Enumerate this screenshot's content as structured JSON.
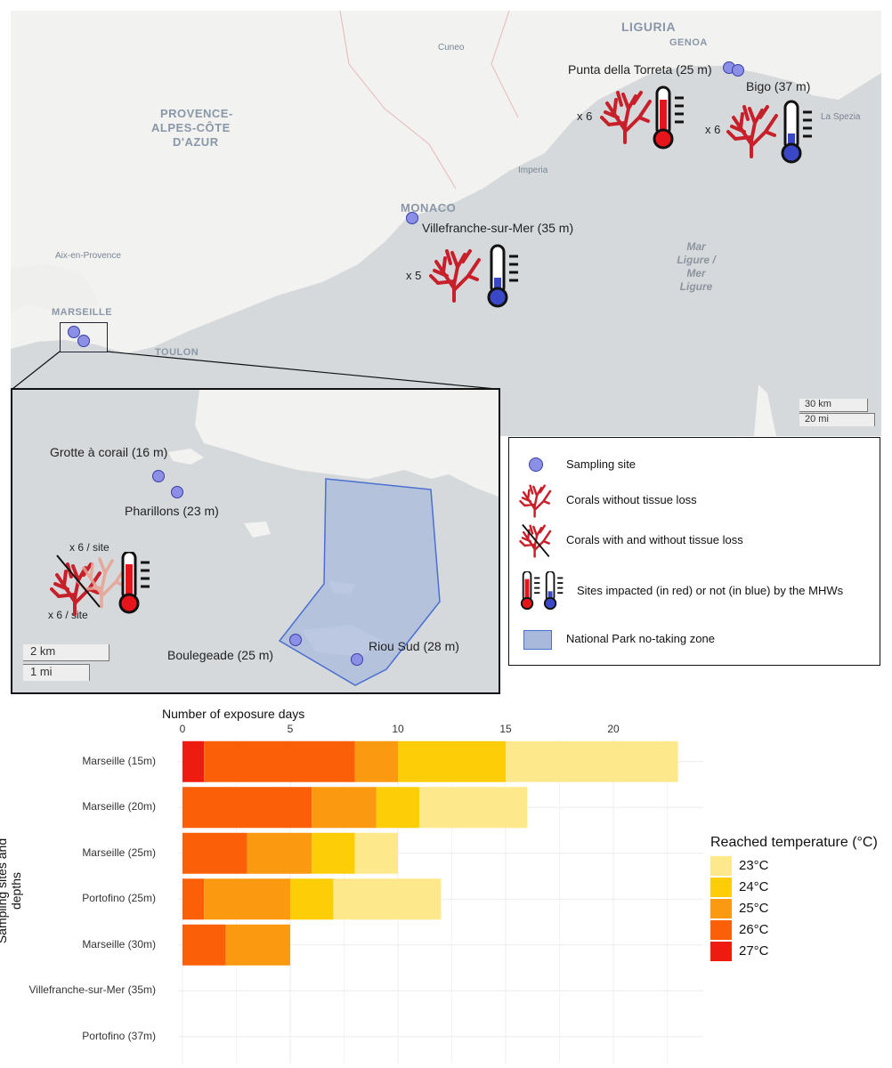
{
  "map": {
    "regions": {
      "liguria": "LIGURIA",
      "genoa": "GENOA",
      "cuneo": "Cuneo",
      "provence": [
        "PROVENCE-",
        "ALPES-CÔTE",
        "D'AZUR"
      ],
      "imperia": "Imperia",
      "monaco": "MONACO",
      "aix": "Aix-en-Provence",
      "marseille": "MARSEILLE",
      "toulon": "TOULON",
      "la_spezia": "La Spezia",
      "sea": [
        "Mar",
        "Ligure /",
        "Mer",
        "Ligure"
      ]
    },
    "sites": {
      "punta": "Punta della Torreta (25 m)",
      "bigo": "Bigo (37 m)",
      "villefranche": "Villefranche-sur-Mer (35 m)",
      "punta_count": "x 6",
      "bigo_count": "x 6",
      "villefranche_count": "x 5"
    },
    "scale": {
      "km": "30 km",
      "mi": "20 mi"
    }
  },
  "inset": {
    "sites": {
      "grotte": "Grotte à corail (16 m)",
      "pharillons": "Pharillons (23 m)",
      "boulegeade": "Boulegeade (25 m)",
      "riou": "Riou Sud (28 m)"
    },
    "count_top": "x 6 / site",
    "count_bottom": "x 6 / site",
    "scale": {
      "km": "2 km",
      "mi": "1 mi"
    }
  },
  "legend": {
    "sampling_site": "Sampling site",
    "corals_without": "Corals without tissue loss",
    "corals_with": "Corals with and without tissue loss",
    "impacted": "Sites impacted (in red) or not (in blue) by the MHWs",
    "park": "National Park no-taking zone"
  },
  "colors": {
    "impacted": "#e8141c",
    "not_impacted": "#3a48c8",
    "coral": "#c8202a",
    "park_fill": "#a9b9dc",
    "park_edge": "#4a6fd0"
  },
  "chart_data": {
    "type": "bar",
    "orientation": "horizontal",
    "stacked": true,
    "xlabel": "Number of exposure days",
    "ylabel": "Sampling sites and depths",
    "xlim": [
      0,
      24
    ],
    "xticks": [
      0,
      5,
      10,
      15,
      20
    ],
    "categories": [
      "Marseille (15m)",
      "Marseille (20m)",
      "Marseille (25m)",
      "Portofino (25m)",
      "Marseille (30m)",
      "Villefranche-sur-Mer (35m)",
      "Portofino (37m)"
    ],
    "legend_title": "Reached temperature (°C)",
    "legend_position": "right",
    "series": [
      {
        "name": "27°C",
        "color": "#ee1c10",
        "values": [
          1,
          0,
          0,
          0,
          0,
          0,
          0
        ]
      },
      {
        "name": "26°C",
        "color": "#fb6008",
        "values": [
          7,
          6,
          3,
          1,
          2,
          0,
          0
        ]
      },
      {
        "name": "25°C",
        "color": "#fb9a10",
        "values": [
          2,
          3,
          3,
          4,
          3,
          0,
          0
        ]
      },
      {
        "name": "24°C",
        "color": "#fdcd08",
        "values": [
          5,
          2,
          2,
          2,
          0,
          0,
          0
        ]
      },
      {
        "name": "23°C",
        "color": "#fde98c",
        "values": [
          8,
          5,
          2,
          5,
          0,
          0,
          0
        ]
      }
    ],
    "legend_order": [
      "23°C",
      "24°C",
      "25°C",
      "26°C",
      "27°C"
    ]
  }
}
